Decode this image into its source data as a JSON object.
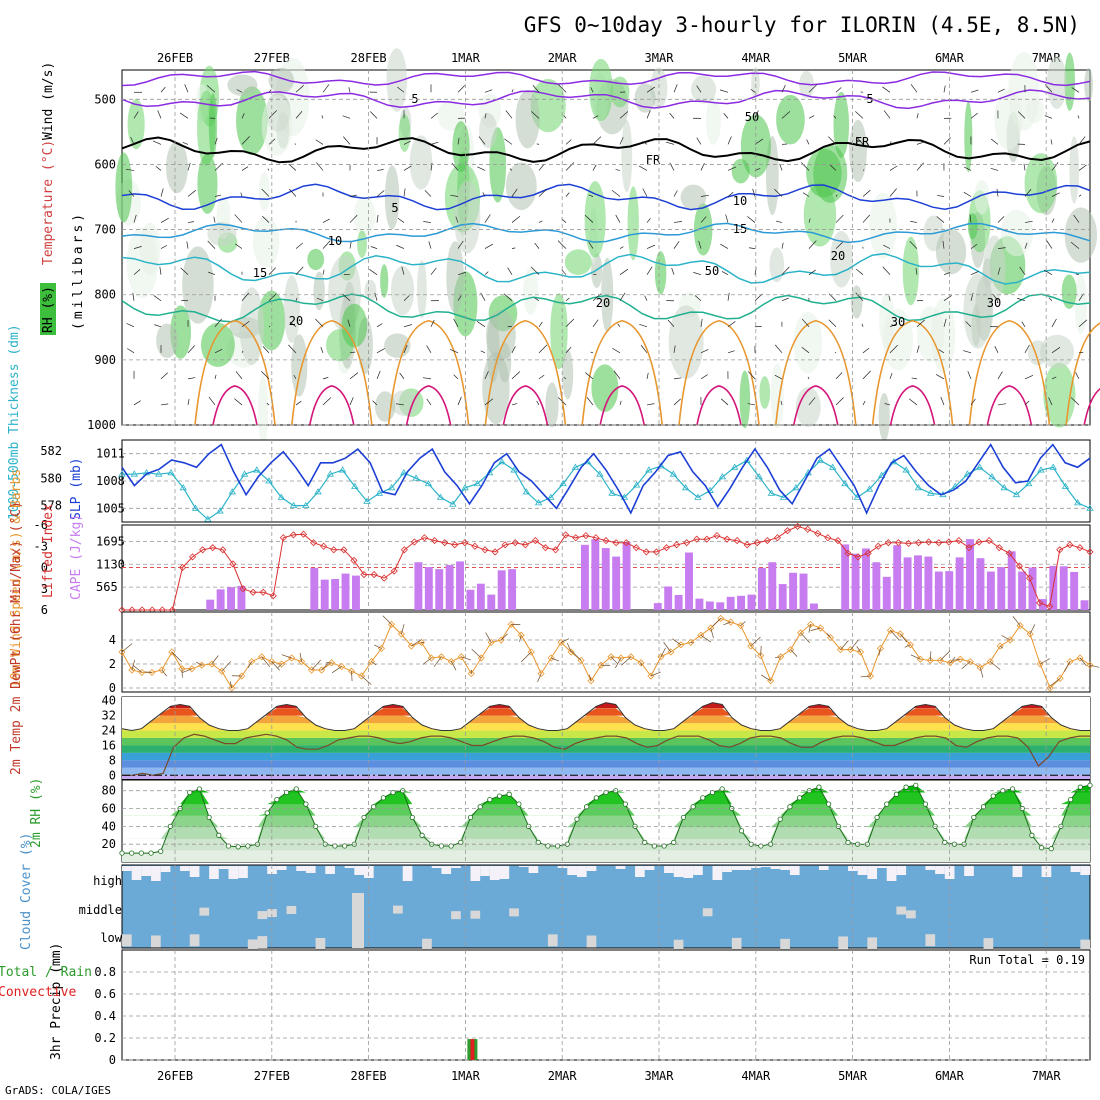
{
  "title": "GFS 0~10day 3-hourly for ILORIN (4.5E, 8.5N)",
  "footer": "GrADS: COLA/IGES",
  "colors": {
    "grid": "#999999",
    "rh_green": "#4cc44c",
    "purple": "#8b2be2",
    "blue": "#1c3fd6",
    "cyan": "#2bb3c8",
    "orange": "#e8962e",
    "magenta": "#d4157a",
    "cape": "#c77cf0",
    "li": "#d93030",
    "wind": "#e8962e",
    "cloud": "#6baad6",
    "rain": "#2c9c2c",
    "conv": "#e02020"
  },
  "date_labels": [
    "26FEB",
    "27FEB",
    "28FEB",
    "1MAR",
    "2MAR",
    "3MAR",
    "4MAR",
    "5MAR",
    "6MAR",
    "7MAR"
  ],
  "chart_data": [
    {
      "type": "heatmap",
      "ylabel_parts": [
        "RH (%)",
        "Temperature (°C)",
        "Wind (m/s)",
        "(millibars)"
      ],
      "yticks": [
        "500",
        "600",
        "700",
        "800",
        "900",
        "1000"
      ],
      "ylim": [
        1000,
        455
      ],
      "contour_labels": [
        "5",
        "5",
        "FR",
        "FR",
        "5",
        "10",
        "10",
        "15",
        "15",
        "20",
        "20",
        "20",
        "30",
        "50",
        "50",
        "30"
      ]
    },
    {
      "type": "line",
      "ylabel": "1000-500mb Thickness (dm)",
      "ylabel2": "SLP (mb)",
      "yticks_left": [
        "582",
        "580",
        "578"
      ],
      "yticks_right": [
        "1011",
        "1008",
        "1005"
      ],
      "series": [
        {
          "name": "SLP",
          "values": [
            1009.5,
            1007.5,
            1008.8,
            1009.3,
            1010.3,
            1010.0,
            1009.5,
            1011.0,
            1012.0,
            1009.0,
            1006.5,
            1008.5,
            1010.0,
            1011.2,
            1009.5,
            1007.5,
            1010.0,
            1010.0,
            1010.5,
            1011.5,
            1010.0,
            1006.8,
            1006.5,
            1009.0,
            1010.5,
            1011.5,
            1009.0,
            1007.5,
            1005.5,
            1007.5,
            1010.0,
            1011.0,
            1009.0,
            1008.0,
            1006.5,
            1005.0,
            1007.2,
            1009.5,
            1011.0,
            1009.2,
            1007.0,
            1004.5,
            1007.5,
            1009.0,
            1010.8,
            1011.2,
            1009.0,
            1007.5,
            1005.2,
            1007.2,
            1009.5,
            1011.5,
            1009.5,
            1007.0,
            1005.5,
            1008.0,
            1010.5,
            1011.5,
            1009.5,
            1007.5,
            1004.5,
            1007.5,
            1010.0,
            1010.8,
            1009.0,
            1007.5,
            1006.5,
            1007.0,
            1008.0,
            1010.0,
            1012.0,
            1009.5,
            1007.8,
            1008.0,
            1010.5,
            1012.0,
            1010.0,
            1009.5,
            1010.5
          ]
        },
        {
          "name": "Thickness",
          "values": [
            580.3,
            580.3,
            580.4,
            580.3,
            580.4,
            579.3,
            577.8,
            577.0,
            577.6,
            579.0,
            580.3,
            580.6,
            579.8,
            578.6,
            578.0,
            578.0,
            579.0,
            580.3,
            580.6,
            579.4,
            578.3,
            578.9,
            579.3,
            580.4,
            580.0,
            579.6,
            578.6,
            578.1,
            579.3,
            579.6,
            580.4,
            581.2,
            580.6,
            579.0,
            578.2,
            578.6,
            579.6,
            580.8,
            581.2,
            580.3,
            578.9,
            578.6,
            579.5,
            580.6,
            580.9,
            580.3,
            579.3,
            578.6,
            579.1,
            580.1,
            580.8,
            581.3,
            580.1,
            578.9,
            578.6,
            579.3,
            580.4,
            581.3,
            580.8,
            579.6,
            578.6,
            579.2,
            580.2,
            581.2,
            580.6,
            579.3,
            578.9,
            578.8,
            579.4,
            580.3,
            580.8,
            580.1,
            579.3,
            578.8,
            579.6,
            580.6,
            580.8,
            579.4,
            578.2,
            577.8
          ]
        }
      ]
    },
    {
      "type": "bar",
      "ylabel": "Lifted Index",
      "ylabel2": "CAPE (J/kg)",
      "yticks_left": [
        "-6",
        "-3",
        "0",
        "3",
        "6"
      ],
      "yticks_right": [
        "1695",
        "1130",
        "565"
      ],
      "series": [
        {
          "name": "CAPE",
          "values": [
            0,
            0,
            0,
            0,
            0,
            0,
            0,
            0,
            255,
            510,
            565,
            595,
            0,
            0,
            0,
            0,
            0,
            0,
            1040,
            750,
            765,
            900,
            850,
            0,
            0,
            0,
            0,
            0,
            1180,
            1060,
            1010,
            1110,
            1200,
            500,
            650,
            380,
            980,
            1010,
            0,
            0,
            0,
            0,
            0,
            0,
            1610,
            1750,
            1530,
            1320,
            1680,
            0,
            0,
            170,
            580,
            370,
            1420,
            280,
            210,
            190,
            325,
            350,
            380,
            1040,
            1180,
            640,
            920,
            900,
            160,
            0,
            0,
            1620,
            1390,
            1520,
            1180,
            820,
            1600,
            1300,
            1350,
            1320,
            950,
            960,
            1300,
            1750,
            1280,
            950,
            1060,
            1450,
            950,
            1050,
            270,
            1090,
            1080,
            940,
            240
          ]
        },
        {
          "name": "LI",
          "values": [
            6.0,
            6.0,
            6.0,
            6.0,
            6.0,
            6.0,
            0.0,
            -1.5,
            -2.5,
            -2.8,
            -2.5,
            -0.5,
            3.0,
            3.5,
            3.5,
            4.0,
            -4.2,
            -4.6,
            -4.7,
            -3.5,
            -3.0,
            -2.5,
            -2.5,
            -1.0,
            1.0,
            1.0,
            1.5,
            0.5,
            -2.5,
            -3.6,
            -4.2,
            -3.8,
            -3.5,
            -3.2,
            -3.5,
            -3.0,
            -2.5,
            -2.2,
            -3.2,
            -3.5,
            -3.2,
            -3.8,
            -2.8,
            -2.5,
            -4.6,
            -4.2,
            -4.5,
            -4.2,
            -3.8,
            -3.5,
            -3.5,
            -2.8,
            -2.2,
            -2.2,
            -2.8,
            -3.2,
            -3.5,
            -4.0,
            -4.0,
            -4.5,
            -4.0,
            -3.8,
            -3.2,
            -3.5,
            -3.8,
            -4.2,
            -5.2,
            -5.8,
            -5.4,
            -4.8,
            -4.2,
            -3.8,
            -2.0,
            -1.5,
            -2.0,
            -3.0,
            -3.5,
            -3.5,
            -3.4,
            -3.5,
            -3.6,
            -3.5,
            -3.6,
            -3.8,
            -2.8,
            -3.6,
            -3.8,
            -2.8,
            -2.0,
            -0.2,
            1.5,
            5.0,
            5.5,
            -2.5,
            -3.2,
            -2.8,
            -2.2
          ]
        }
      ]
    },
    {
      "type": "line",
      "ylabel": "10m Wind Speed (m/s) & Barbs",
      "yticks": [
        "0",
        "2",
        "4"
      ],
      "ylim": [
        0,
        6
      ],
      "values": [
        3.0,
        1.5,
        1.3,
        1.3,
        1.5,
        3.0,
        1.6,
        1.6,
        1.9,
        2.0,
        1.4,
        0.0,
        1.0,
        2.2,
        2.6,
        2.2,
        2.0,
        2.5,
        2.2,
        1.5,
        1.5,
        2.1,
        1.8,
        1.4,
        1.0,
        2.2,
        3.3,
        5.3,
        4.5,
        3.5,
        3.8,
        2.5,
        2.6,
        2.2,
        2.6,
        1.2,
        2.5,
        3.8,
        4.0,
        5.3,
        4.4,
        3.0,
        1.2,
        2.5,
        3.8,
        3.0,
        2.3,
        0.6,
        1.9,
        2.6,
        2.5,
        2.6,
        2.1,
        1.0,
        2.6,
        3.0,
        3.6,
        3.8,
        4.4,
        5.0,
        5.8,
        5.5,
        5.2,
        3.5,
        2.7,
        0.6,
        2.6,
        3.2,
        4.6,
        5.3,
        5.0,
        4.2,
        3.2,
        3.2,
        3.0,
        1.0,
        3.3,
        4.8,
        4.5,
        3.6,
        2.4,
        2.3,
        2.3,
        2.1,
        2.4,
        2.2,
        1.7,
        2.2,
        3.5,
        4.0,
        5.2,
        4.5,
        2.0,
        0.0,
        0.8,
        2.2,
        2.5,
        1.9
      ]
    },
    {
      "type": "area",
      "ylabel": "2m Temp 2m DewPt (6hr Min/Max) (°C)",
      "yticks": [
        "40",
        "32",
        "24",
        "16",
        "8",
        "0"
      ],
      "ylim": [
        -2,
        42
      ],
      "temp": [
        25,
        24,
        25,
        29,
        33,
        37,
        38,
        37,
        31,
        27,
        25,
        24,
        24,
        25,
        29,
        33,
        37,
        38,
        37,
        31,
        27,
        25,
        24,
        24,
        25,
        29,
        33,
        37,
        38,
        37,
        31,
        27,
        25,
        24,
        24,
        25,
        29,
        33,
        37,
        38,
        37,
        31,
        27,
        25,
        24,
        24,
        25,
        29,
        33,
        37,
        39,
        38,
        31,
        27,
        25,
        24,
        24,
        25,
        29,
        33,
        37,
        39,
        38,
        31,
        27,
        25,
        24,
        24,
        25,
        29,
        33,
        37,
        38,
        37,
        31,
        27,
        25,
        24,
        24,
        25,
        29,
        33,
        37,
        38,
        37,
        31,
        27,
        25,
        24,
        24,
        25,
        29,
        33,
        37,
        38,
        37,
        31,
        27,
        25,
        24,
        24
      ],
      "dewpt": [
        0,
        0,
        1,
        0,
        1,
        15,
        20,
        22,
        21,
        19,
        17,
        17,
        20,
        21,
        22,
        21,
        19,
        15,
        14,
        14,
        16,
        19,
        20,
        21,
        21,
        20,
        18,
        17,
        18,
        20,
        21,
        21,
        20,
        18,
        16,
        16,
        18,
        20,
        21,
        21,
        20,
        18,
        15,
        14,
        17,
        19,
        20,
        21,
        21,
        20,
        17,
        15,
        16,
        19,
        21,
        21,
        21,
        19,
        16,
        15,
        17,
        20,
        21,
        21,
        20,
        17,
        15,
        15,
        18,
        20,
        21,
        21,
        20,
        18,
        16,
        16,
        18,
        20,
        21,
        21,
        20,
        16,
        15,
        18,
        20,
        21,
        21,
        20,
        15,
        5,
        10,
        18,
        20,
        21,
        21
      ]
    },
    {
      "type": "area",
      "ylabel": "2m RH (%)",
      "yticks": [
        "80",
        "60",
        "40",
        "20"
      ],
      "ylim": [
        0,
        92
      ],
      "values": [
        10,
        10,
        10,
        10,
        12,
        40,
        60,
        78,
        82,
        50,
        30,
        18,
        17,
        18,
        20,
        55,
        70,
        78,
        82,
        65,
        40,
        20,
        18,
        18,
        20,
        50,
        62,
        72,
        78,
        80,
        50,
        30,
        20,
        18,
        18,
        22,
        50,
        62,
        70,
        74,
        76,
        65,
        40,
        22,
        18,
        18,
        20,
        48,
        62,
        72,
        78,
        80,
        65,
        40,
        22,
        18,
        18,
        22,
        50,
        62,
        72,
        78,
        82,
        60,
        35,
        20,
        18,
        20,
        48,
        62,
        72,
        80,
        84,
        65,
        40,
        22,
        20,
        20,
        50,
        65,
        76,
        84,
        86,
        65,
        40,
        22,
        20,
        20,
        50,
        62,
        74,
        80,
        82,
        60,
        30,
        16,
        15,
        40,
        70,
        84,
        86
      ]
    },
    {
      "type": "area",
      "ylabel": "Cloud Cover (%)",
      "yticks": [
        "high",
        "middle",
        "low"
      ]
    },
    {
      "type": "bar",
      "ylabel": "3hr Precip (mm)",
      "ylabel_left": "Total / Rain",
      "ylabel_left2": "Convective",
      "yticks": [
        "0.8",
        "0.6",
        "0.4",
        "0.2",
        "0"
      ],
      "ylim": [
        0,
        1.0
      ],
      "annotation": "Run Total = 0.19",
      "events": [
        {
          "date": "1MAR",
          "total": 0.19,
          "conv": 0.19
        }
      ]
    }
  ]
}
